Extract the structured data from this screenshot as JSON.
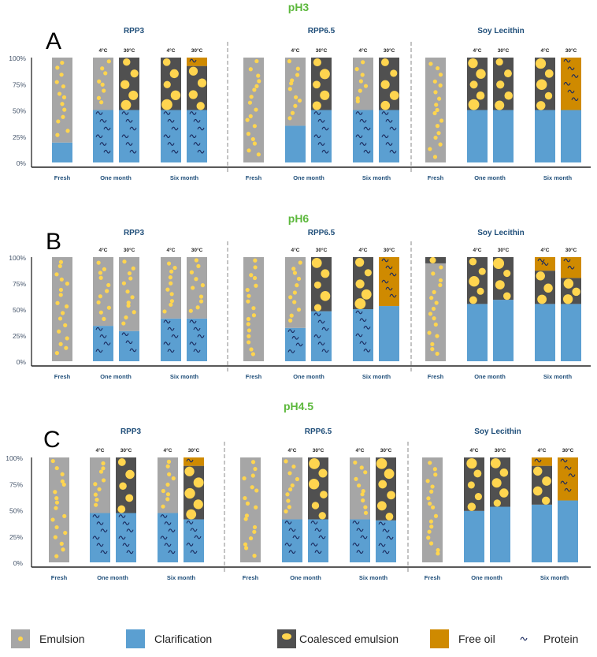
{
  "colors": {
    "emulsion": "#a6a6a6",
    "clarification": "#5b9fd1",
    "coalesced": "#505050",
    "free_oil": "#cf8a00",
    "droplet": "#ffd54f",
    "protein": "#1a2a5e"
  },
  "axis_labels": [
    "100%",
    "75%",
    "50%",
    "25%",
    "0%"
  ],
  "group_labels": [
    "Fresh",
    "One month",
    "Six month"
  ],
  "temp_labels": [
    "4°C",
    "30°C"
  ],
  "panels": [
    {
      "letter": "A",
      "ph": "pH3",
      "products": [
        {
          "name": "RPP3",
          "bars": [
            [
              [
                "c",
                0.19,
                0
              ],
              [
                "e",
                0.81,
                0
              ]
            ],
            [
              [
                "c",
                0.5,
                1
              ],
              [
                "e",
                0.5,
                0
              ]
            ],
            [
              [
                "c",
                0.5,
                1
              ],
              [
                "k",
                0.5,
                0
              ]
            ],
            [
              [
                "c",
                0.5,
                1
              ],
              [
                "k",
                0.5,
                0
              ]
            ],
            [
              [
                "c",
                0.5,
                1
              ],
              [
                "k",
                0.42,
                0
              ],
              [
                "o",
                0.08,
                1
              ]
            ]
          ]
        },
        {
          "name": "RPP6.5",
          "bars": [
            [
              [
                "e",
                1,
                0
              ]
            ],
            [
              [
                "c",
                0.35,
                0
              ],
              [
                "e",
                0.65,
                0
              ]
            ],
            [
              [
                "c",
                0.5,
                1
              ],
              [
                "k",
                0.5,
                0
              ]
            ],
            [
              [
                "c",
                0.5,
                1
              ],
              [
                "e",
                0.5,
                0
              ]
            ],
            [
              [
                "c",
                0.5,
                1
              ],
              [
                "k",
                0.5,
                0
              ]
            ]
          ]
        },
        {
          "name": "Soy Lecithin",
          "bars": [
            [
              [
                "e",
                1,
                0
              ]
            ],
            [
              [
                "c",
                0.5,
                0
              ],
              [
                "k",
                0.5,
                0
              ]
            ],
            [
              [
                "c",
                0.5,
                0
              ],
              [
                "k",
                0.5,
                0
              ]
            ],
            [
              [
                "c",
                0.5,
                0
              ],
              [
                "k",
                0.5,
                0
              ]
            ],
            [
              [
                "c",
                0.5,
                0
              ],
              [
                "o",
                0.5,
                1
              ]
            ]
          ]
        }
      ]
    },
    {
      "letter": "B",
      "ph": "pH6",
      "products": [
        {
          "name": "RPP3",
          "bars": [
            [
              [
                "e",
                1,
                0
              ]
            ],
            [
              [
                "c",
                0.34,
                1
              ],
              [
                "e",
                0.66,
                0
              ]
            ],
            [
              [
                "c",
                0.29,
                1
              ],
              [
                "e",
                0.71,
                0
              ]
            ],
            [
              [
                "c",
                0.41,
                1
              ],
              [
                "e",
                0.59,
                0
              ]
            ],
            [
              [
                "c",
                0.41,
                1
              ],
              [
                "e",
                0.59,
                0
              ]
            ]
          ]
        },
        {
          "name": "RPP6.5",
          "bars": [
            [
              [
                "e",
                1,
                0
              ]
            ],
            [
              [
                "c",
                0.32,
                1
              ],
              [
                "e",
                0.68,
                0
              ]
            ],
            [
              [
                "c",
                0.48,
                1
              ],
              [
                "k",
                0.52,
                0
              ]
            ],
            [
              [
                "c",
                0.5,
                1
              ],
              [
                "k",
                0.5,
                0
              ]
            ],
            [
              [
                "c",
                0.53,
                0
              ],
              [
                "o",
                0.47,
                1
              ]
            ]
          ]
        },
        {
          "name": "Soy Lecithin",
          "bars": [
            [
              [
                "e",
                0.94,
                0
              ],
              [
                "k",
                0.06,
                0
              ]
            ],
            [
              [
                "c",
                0.55,
                0
              ],
              [
                "k",
                0.45,
                0
              ]
            ],
            [
              [
                "c",
                0.59,
                0
              ],
              [
                "k",
                0.41,
                0
              ]
            ],
            [
              [
                "c",
                0.55,
                0
              ],
              [
                "k",
                0.32,
                0
              ],
              [
                "o",
                0.13,
                1
              ]
            ],
            [
              [
                "c",
                0.55,
                0
              ],
              [
                "k",
                0.25,
                0
              ],
              [
                "o",
                0.2,
                1
              ]
            ]
          ]
        }
      ]
    },
    {
      "letter": "C",
      "ph": "pH4.5",
      "products": [
        {
          "name": "RPP3",
          "bars": [
            [
              [
                "e",
                1,
                0
              ]
            ],
            [
              [
                "c",
                0.47,
                1
              ],
              [
                "e",
                0.53,
                0
              ]
            ],
            [
              [
                "c",
                0.47,
                1
              ],
              [
                "k",
                0.53,
                0
              ]
            ],
            [
              [
                "c",
                0.47,
                1
              ],
              [
                "e",
                0.53,
                0
              ]
            ],
            [
              [
                "c",
                0.41,
                1
              ],
              [
                "k",
                0.51,
                0
              ],
              [
                "o",
                0.08,
                1
              ]
            ]
          ]
        },
        {
          "name": "RPP6.5",
          "bars": [
            [
              [
                "e",
                1,
                0
              ]
            ],
            [
              [
                "c",
                0.41,
                1
              ],
              [
                "e",
                0.59,
                0
              ]
            ],
            [
              [
                "c",
                0.41,
                1
              ],
              [
                "k",
                0.59,
                0
              ]
            ],
            [
              [
                "c",
                0.41,
                1
              ],
              [
                "e",
                0.59,
                0
              ]
            ],
            [
              [
                "c",
                0.4,
                1
              ],
              [
                "k",
                0.6,
                0
              ]
            ]
          ]
        },
        {
          "name": "Soy Lecithin",
          "bars": [
            [
              [
                "e",
                1,
                0
              ]
            ],
            [
              [
                "c",
                0.49,
                0
              ],
              [
                "k",
                0.51,
                0
              ]
            ],
            [
              [
                "c",
                0.53,
                0
              ],
              [
                "k",
                0.47,
                0
              ]
            ],
            [
              [
                "c",
                0.55,
                0
              ],
              [
                "k",
                0.37,
                0
              ],
              [
                "o",
                0.08,
                1
              ]
            ],
            [
              [
                "c",
                0.59,
                0
              ],
              [
                "o",
                0.41,
                1
              ]
            ]
          ]
        }
      ]
    }
  ],
  "legend": [
    {
      "key": "e",
      "label": "Emulsion"
    },
    {
      "key": "c",
      "label": "Clarification"
    },
    {
      "key": "k",
      "label": "Coalesced emulsion"
    },
    {
      "key": "o",
      "label": "Free oil"
    },
    {
      "key": "p",
      "label": "Protein"
    }
  ]
}
